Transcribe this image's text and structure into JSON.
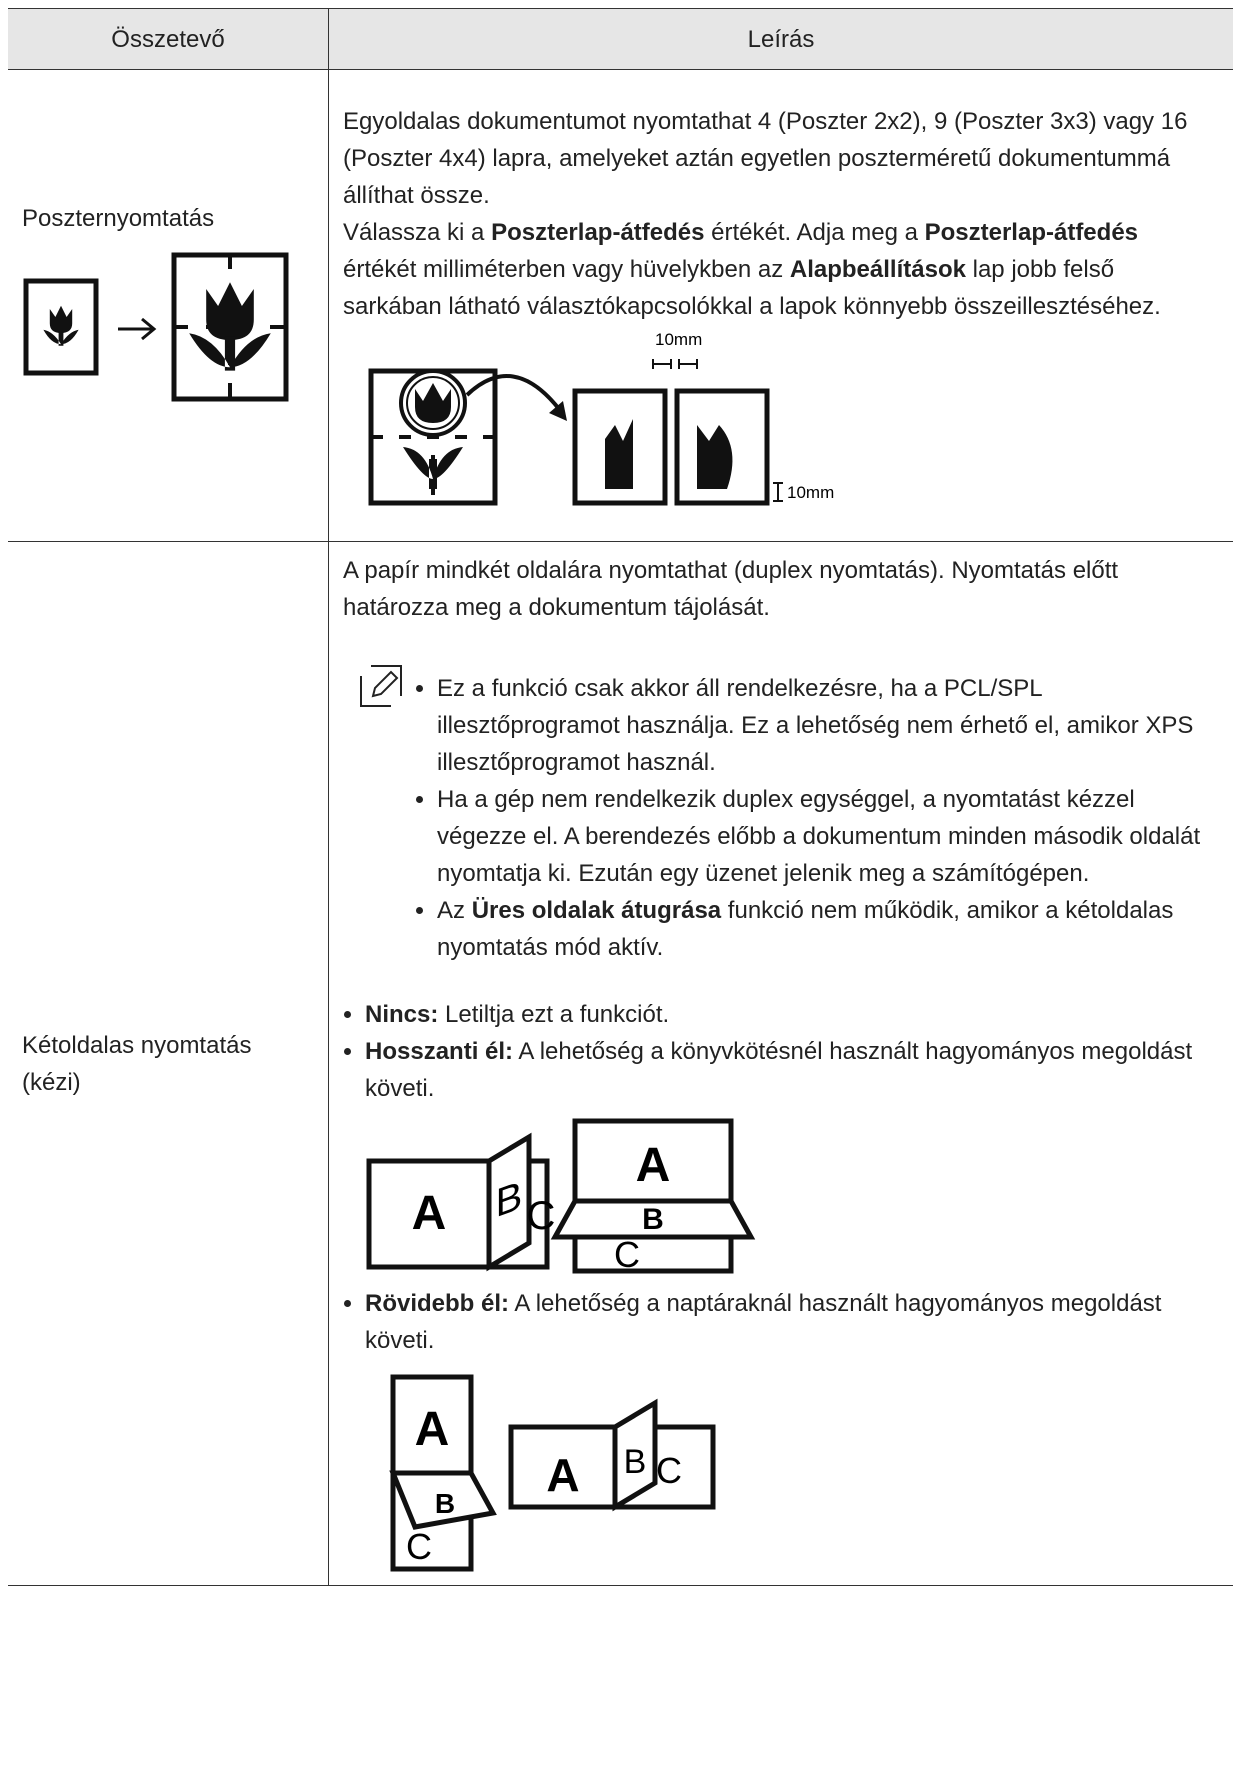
{
  "table": {
    "header": [
      "Összetevő",
      "Leírás"
    ],
    "rows": [
      {
        "component": "Poszternyomtatás",
        "paragraphs": [
          [
            "Egyoldalas dokumentumot nyomtathat 4 (Poszter 2x2), 9 (Poszter 3x3) vagy 16 (Poszter 4x4) lapra, amelyeket aztán egyetlen poszterméretű dokumentummá állíthat össze."
          ],
          [
            "Válassza ki a ",
            {
              "bold": "Poszterlap-átfedés"
            },
            " értékét. Adja meg a ",
            {
              "bold": "Poszterlap-átfedés"
            },
            " értékét milliméterben vagy hüvelykben az ",
            {
              "bold": "Alapbeállítások"
            },
            " lap jobb felső sarkában látható választókapcsolókkal a lapok könnyebb összeillesztéséhez."
          ]
        ],
        "figure_labels": [
          "10mm",
          "10mm"
        ]
      },
      {
        "component": "Kétoldalas nyomtatás (kézi)",
        "paragraphs": [
          [
            "A papír mindkét oldalára nyomtathat (duplex nyomtatás). Nyomtatás előtt határozza meg a dokumentum tájolását."
          ]
        ],
        "note": [
          [
            "Ez a funkció csak akkor áll rendelkezésre, ha a PCL/SPL illesztőprogramot használja. Ez a lehetőség nem érhető el, amikor XPS illesztőprogramot használ."
          ],
          [
            "Ha a gép nem rendelkezik duplex egységgel, a nyomtatást kézzel végezze el. A berendezés előbb a dokumentum minden második oldalát nyomtatja ki. Ezután egy üzenet jelenik meg a számítógépen."
          ],
          [
            "Az ",
            {
              "bold": "Üres oldalak átugrása"
            },
            " funkció nem működik, amikor a kétoldalas nyomtatás mód aktív."
          ]
        ],
        "options": [
          {
            "label": "Nincs:",
            "text": "Letiltja ezt a funkciót."
          },
          {
            "label": "Hosszanti él:",
            "text": "A lehetőség a könyvkötésnél használt hagyományos megoldást követi."
          },
          {
            "label": "Rövidebb él:",
            "text": "A lehetőség a naptáraknál használt hagyományos megoldást követi."
          }
        ],
        "figure_letters": [
          "A",
          "B",
          "C"
        ]
      }
    ]
  }
}
